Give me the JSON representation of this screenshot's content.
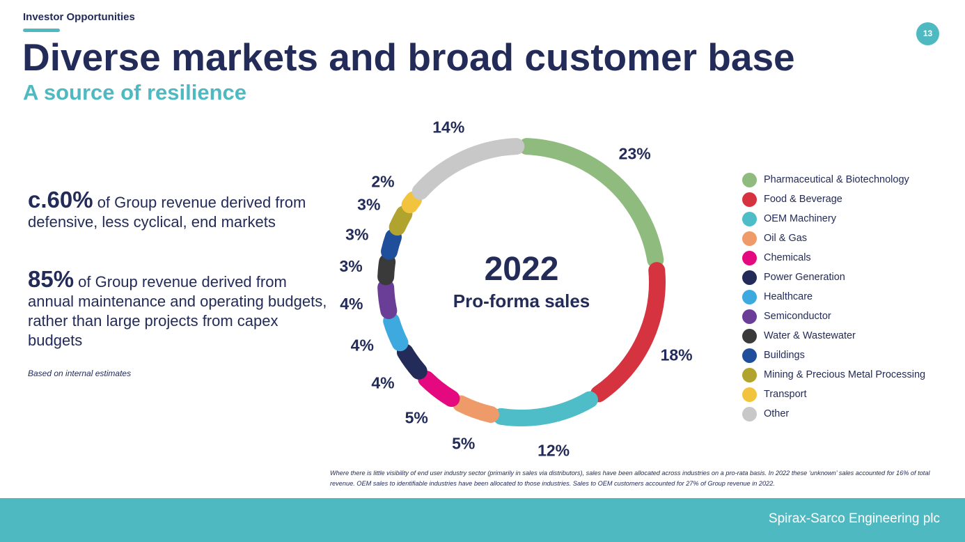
{
  "header": {
    "section_label": "Investor Opportunities",
    "page_number": "13",
    "title": "Diverse markets and broad customer base",
    "subtitle": "A source of resilience"
  },
  "stats": [
    {
      "value": "c.60%",
      "text": " of Group revenue derived from defensive, less cyclical, end markets"
    },
    {
      "value": "85%",
      "text": " of Group revenue derived from annual maintenance and operating budgets, rather than large projects from capex budgets"
    }
  ],
  "note": "Based on internal estimates",
  "chart_data": {
    "type": "pie",
    "style": "donut",
    "center_title": "2022",
    "center_subtitle": "Pro-forma sales",
    "slices": [
      {
        "label": "Pharmaceutical & Biotechnology",
        "value": 23,
        "display": "23%",
        "color": "#8fbb7e"
      },
      {
        "label": "Food & Beverage",
        "value": 18,
        "display": "18%",
        "color": "#d63341"
      },
      {
        "label": "OEM Machinery",
        "value": 12,
        "display": "12%",
        "color": "#4fbdc8"
      },
      {
        "label": "Oil & Gas",
        "value": 5,
        "display": "5%",
        "color": "#ef9b69"
      },
      {
        "label": "Chemicals",
        "value": 5,
        "display": "5%",
        "color": "#e5097f"
      },
      {
        "label": "Power Generation",
        "value": 4,
        "display": "4%",
        "color": "#232b59"
      },
      {
        "label": "Healthcare",
        "value": 4,
        "display": "4%",
        "color": "#3da9df"
      },
      {
        "label": "Semiconductor",
        "value": 4,
        "display": "4%",
        "color": "#6a3d97"
      },
      {
        "label": "Water & Wastewater",
        "value": 3,
        "display": "3%",
        "color": "#3a3a3a"
      },
      {
        "label": "Buildings",
        "value": 3,
        "display": "3%",
        "color": "#1f4f9a"
      },
      {
        "label": "Mining & Precious Metal Processing",
        "value": 3,
        "display": "3%",
        "color": "#b0a42e"
      },
      {
        "label": "Transport",
        "value": 2,
        "display": "2%",
        "color": "#f2c33c"
      },
      {
        "label": "Other",
        "value": 14,
        "display": "14%",
        "color": "#c8c8c8"
      }
    ],
    "legend_position": "right"
  },
  "footnote": "Where there is little visibility of end user industry sector (primarily in sales via distributors), sales have been allocated across industries on a pro-rata basis. In 2022 these ‘unknown’ sales accounted for 16% of total revenue. OEM sales to identifiable industries have been allocated to those industries. Sales to OEM customers accounted for 27% of Group revenue in 2022.",
  "footer": {
    "company": "Spirax-Sarco Engineering plc"
  }
}
